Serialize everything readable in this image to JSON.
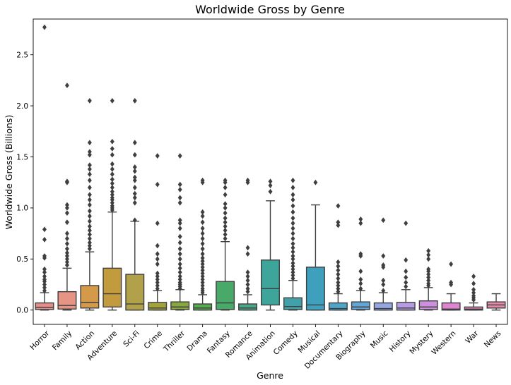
{
  "chart_data": {
    "type": "box",
    "title": "Worldwide Gross by Genre",
    "xlabel": "Genre",
    "ylabel": "Worldwide Gross (Billions)",
    "ylim": [
      -0.14,
      2.85
    ],
    "yticks": [
      0.0,
      0.5,
      1.0,
      1.5,
      2.0,
      2.5
    ],
    "ytick_labels": [
      "0.0",
      "0.5",
      "1.0",
      "1.5",
      "2.0",
      "2.5"
    ],
    "grid": false,
    "legend": "none",
    "categories": [
      "Horror",
      "Family",
      "Action",
      "Adventure",
      "Sci-Fi",
      "Crime",
      "Thriller",
      "Drama",
      "Fantasy",
      "Romance",
      "Animation",
      "Comedy",
      "Musical",
      "Documentary",
      "Biography",
      "Music",
      "History",
      "Mystery",
      "Western",
      "War",
      "News"
    ],
    "boxes": [
      {
        "q1": 0.005,
        "median": 0.025,
        "q3": 0.07,
        "whisker_low": 0.0,
        "whisker_high": 0.17,
        "color": "#e68d8a",
        "outliers": [
          0.19,
          0.22,
          0.25,
          0.28,
          0.3,
          0.33,
          0.37,
          0.4,
          0.51,
          0.53,
          0.69,
          0.79,
          2.77
        ]
      },
      {
        "q1": 0.01,
        "median": 0.045,
        "q3": 0.18,
        "whisker_low": 0.0,
        "whisker_high": 0.41,
        "color": "#e69585",
        "outliers": [
          0.44,
          0.47,
          0.5,
          0.53,
          0.56,
          0.6,
          0.65,
          0.7,
          0.75,
          0.86,
          0.95,
          1.0,
          1.03,
          1.25,
          1.26,
          2.2
        ]
      },
      {
        "q1": 0.02,
        "median": 0.075,
        "q3": 0.24,
        "whisker_low": 0.0,
        "whisker_high": 0.57,
        "color": "#d49a4a",
        "outliers": [
          0.6,
          0.63,
          0.66,
          0.7,
          0.74,
          0.78,
          0.82,
          0.87,
          0.92,
          0.97,
          1.03,
          1.08,
          1.13,
          1.2,
          1.27,
          1.33,
          1.38,
          1.42,
          1.52,
          1.55,
          1.64,
          2.05
        ]
      },
      {
        "q1": 0.03,
        "median": 0.16,
        "q3": 0.41,
        "whisker_low": 0.0,
        "whisker_high": 0.96,
        "color": "#c39b3f",
        "outliers": [
          0.98,
          1.0,
          1.02,
          1.05,
          1.08,
          1.1,
          1.13,
          1.16,
          1.2,
          1.24,
          1.28,
          1.33,
          1.38,
          1.43,
          1.52,
          1.58,
          1.65,
          2.05
        ]
      },
      {
        "q1": 0.0,
        "median": 0.06,
        "q3": 0.35,
        "whisker_low": 0.0,
        "whisker_high": 0.87,
        "color": "#b0a14a",
        "outliers": [
          0.88,
          1.05,
          1.1,
          1.14,
          1.2,
          1.27,
          1.3,
          1.36,
          1.4,
          1.52,
          1.64,
          2.05
        ]
      },
      {
        "q1": 0.0,
        "median": 0.02,
        "q3": 0.075,
        "whisker_low": 0.0,
        "whisker_high": 0.19,
        "color": "#a3a33d",
        "outliers": [
          0.21,
          0.24,
          0.27,
          0.3,
          0.33,
          0.36,
          0.45,
          0.5,
          0.55,
          0.63,
          0.85,
          1.23,
          1.51
        ]
      },
      {
        "q1": 0.005,
        "median": 0.03,
        "q3": 0.08,
        "whisker_low": 0.0,
        "whisker_high": 0.2,
        "color": "#86a83c",
        "outliers": [
          0.21,
          0.23,
          0.25,
          0.27,
          0.3,
          0.33,
          0.37,
          0.41,
          0.45,
          0.5,
          0.55,
          0.6,
          0.66,
          0.72,
          0.8,
          0.85,
          0.88,
          1.05,
          1.1,
          1.18,
          1.23,
          1.51
        ]
      },
      {
        "q1": 0.0,
        "median": 0.02,
        "q3": 0.06,
        "whisker_low": 0.0,
        "whisker_high": 0.15,
        "color": "#56ad4f",
        "outliers": [
          0.17,
          0.19,
          0.21,
          0.24,
          0.27,
          0.3,
          0.33,
          0.36,
          0.39,
          0.42,
          0.45,
          0.48,
          0.51,
          0.55,
          0.6,
          0.65,
          0.7,
          0.75,
          0.8,
          0.86,
          0.92,
          0.96,
          1.25,
          1.27
        ]
      },
      {
        "q1": 0.005,
        "median": 0.07,
        "q3": 0.28,
        "whisker_low": 0.0,
        "whisker_high": 0.67,
        "color": "#49a969",
        "outliers": [
          0.7,
          0.74,
          0.78,
          0.82,
          0.86,
          0.9,
          0.95,
          1.0,
          1.04,
          1.13,
          1.2,
          1.25,
          1.27
        ]
      },
      {
        "q1": 0.0,
        "median": 0.02,
        "q3": 0.06,
        "whisker_low": 0.0,
        "whisker_high": 0.15,
        "color": "#48a888",
        "outliers": [
          0.18,
          0.21,
          0.25,
          0.29,
          0.33,
          0.37,
          0.55,
          0.61,
          1.25,
          1.27
        ]
      },
      {
        "q1": 0.05,
        "median": 0.21,
        "q3": 0.49,
        "whisker_low": 0.0,
        "whisker_high": 1.07,
        "color": "#3ea59a",
        "outliers": [
          1.16,
          1.22,
          1.26
        ]
      },
      {
        "q1": 0.005,
        "median": 0.035,
        "q3": 0.12,
        "whisker_low": 0.0,
        "whisker_high": 0.29,
        "color": "#42a0a9",
        "outliers": [
          0.31,
          0.34,
          0.37,
          0.4,
          0.43,
          0.46,
          0.5,
          0.53,
          0.57,
          0.61,
          0.65,
          0.7,
          0.75,
          0.8,
          0.85,
          0.9,
          0.96,
          1.02,
          1.08,
          1.13,
          1.2,
          1.27
        ]
      },
      {
        "q1": 0.0,
        "median": 0.05,
        "q3": 0.42,
        "whisker_low": 0.0,
        "whisker_high": 1.03,
        "color": "#3fa0bd",
        "outliers": [
          1.25
        ]
      },
      {
        "q1": 0.0,
        "median": 0.015,
        "q3": 0.07,
        "whisker_low": 0.0,
        "whisker_high": 0.16,
        "color": "#4da5c8",
        "outliers": [
          0.18,
          0.21,
          0.24,
          0.27,
          0.31,
          0.35,
          0.39,
          0.43,
          0.47,
          0.83,
          0.86,
          1.02
        ]
      },
      {
        "q1": 0.005,
        "median": 0.03,
        "q3": 0.08,
        "whisker_low": 0.0,
        "whisker_high": 0.19,
        "color": "#61a6d8",
        "outliers": [
          0.21,
          0.26,
          0.3,
          0.38,
          0.53,
          0.55,
          0.85,
          0.89
        ]
      },
      {
        "q1": 0.0,
        "median": 0.015,
        "q3": 0.07,
        "whisker_low": 0.0,
        "whisker_high": 0.17,
        "color": "#94a7e0",
        "outliers": [
          0.19,
          0.25,
          0.29,
          0.42,
          0.44,
          0.53,
          0.88
        ]
      },
      {
        "q1": 0.0,
        "median": 0.02,
        "q3": 0.075,
        "whisker_low": 0.0,
        "whisker_high": 0.2,
        "color": "#b79be4",
        "outliers": [
          0.23,
          0.27,
          0.32,
          0.38,
          0.49,
          0.85
        ]
      },
      {
        "q1": 0.005,
        "median": 0.03,
        "q3": 0.09,
        "whisker_low": 0.0,
        "whisker_high": 0.22,
        "color": "#cf8fdf",
        "outliers": [
          0.24,
          0.26,
          0.29,
          0.32,
          0.35,
          0.38,
          0.4,
          0.5,
          0.54,
          0.58
        ]
      },
      {
        "q1": 0.0,
        "median": 0.01,
        "q3": 0.07,
        "whisker_low": 0.0,
        "whisker_high": 0.16,
        "color": "#de85d2",
        "outliers": [
          0.25,
          0.27,
          0.45
        ]
      },
      {
        "q1": 0.0,
        "median": 0.01,
        "q3": 0.03,
        "whisker_low": 0.0,
        "whisker_high": 0.07,
        "color": "#e487c1",
        "outliers": [
          0.1,
          0.12,
          0.14,
          0.17,
          0.2,
          0.26,
          0.33
        ]
      },
      {
        "q1": 0.02,
        "median": 0.05,
        "q3": 0.08,
        "whisker_low": 0.0,
        "whisker_high": 0.16,
        "color": "#e68aa8",
        "outliers": []
      }
    ]
  }
}
